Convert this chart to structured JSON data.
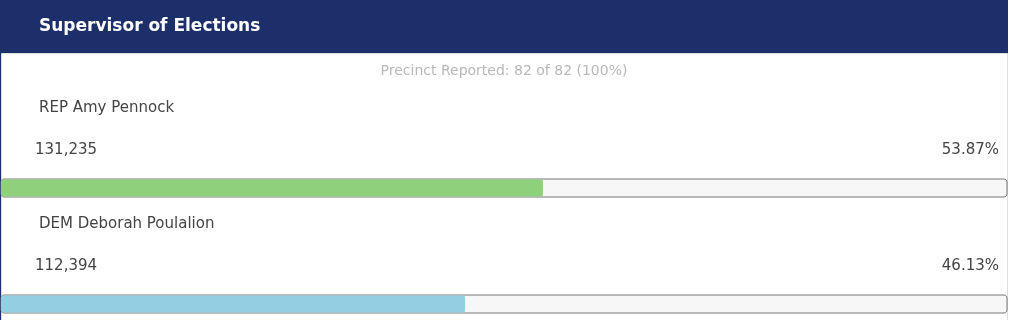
{
  "chart_data": {
    "type": "bar",
    "orientation": "horizontal",
    "title": "Supervisor of Elections",
    "subtitle": "Precinct Reported: 82 of 82 (100%)",
    "categories": [
      "REP Amy Pennock",
      "DEM Deborah Poulalion"
    ],
    "values": [
      53.87,
      46.13
    ],
    "colors": [
      "#8fd17a",
      "#92cfe3"
    ],
    "value_labels": [
      "53.87%",
      "46.13%"
    ],
    "annotations": [
      "131,235",
      "112,394"
    ],
    "xlim": [
      0,
      100
    ],
    "tick_labels": false
  }
}
